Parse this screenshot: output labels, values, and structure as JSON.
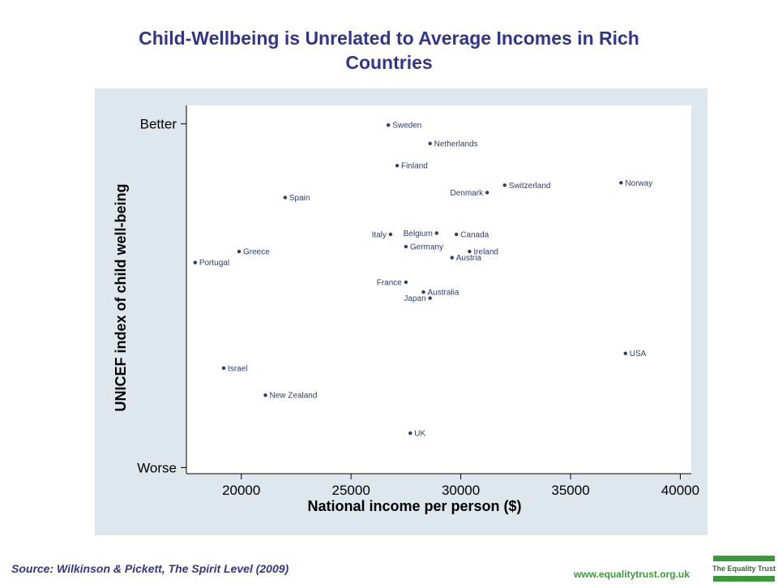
{
  "page": {
    "title": "Child-Wellbeing is Unrelated to Average Incomes in Rich Countries",
    "source": "Source: Wilkinson & Pickett, The Spirit Level (2009)",
    "website": "www.equalitytrust.org.uk",
    "logo_text": "The Equality Trust"
  },
  "colors": {
    "title": "#33358a",
    "panel_bg": "#dfe7ee",
    "plot_bg": "#ffffff",
    "point": "#2c3d6e",
    "website": "#3a9a3a"
  },
  "chart_data": {
    "type": "scatter",
    "title": "Child-Wellbeing is Unrelated to Average Incomes in Rich Countries",
    "xlabel": "National income per person ($)",
    "ylabel": "UNICEF index of child well-being",
    "xlim": [
      17500,
      40500
    ],
    "ylim": [
      -1.45,
      1.55
    ],
    "x_ticks": [
      20000,
      25000,
      30000,
      35000,
      40000
    ],
    "x_tick_labels": [
      "20000",
      "25000",
      "30000",
      "35000",
      "40000"
    ],
    "y_ticks": [
      -1.4,
      1.4
    ],
    "y_tick_labels": [
      "Worse",
      "Better"
    ],
    "grid": false,
    "points": [
      {
        "label": "Sweden",
        "x": 26700,
        "y": 1.39,
        "label_side": "right"
      },
      {
        "label": "Netherlands",
        "x": 28600,
        "y": 1.24,
        "label_side": "right"
      },
      {
        "label": "Finland",
        "x": 27100,
        "y": 1.06,
        "label_side": "right"
      },
      {
        "label": "Switzerland",
        "x": 32000,
        "y": 0.9,
        "label_side": "right"
      },
      {
        "label": "Norway",
        "x": 37300,
        "y": 0.92,
        "label_side": "right"
      },
      {
        "label": "Denmark",
        "x": 31200,
        "y": 0.84,
        "label_side": "left"
      },
      {
        "label": "Spain",
        "x": 22000,
        "y": 0.8,
        "label_side": "right"
      },
      {
        "label": "Italy",
        "x": 26800,
        "y": 0.5,
        "label_side": "left"
      },
      {
        "label": "Belgium",
        "x": 28900,
        "y": 0.51,
        "label_side": "left"
      },
      {
        "label": "Canada",
        "x": 29800,
        "y": 0.5,
        "label_side": "right"
      },
      {
        "label": "Germany",
        "x": 27500,
        "y": 0.4,
        "label_side": "right"
      },
      {
        "label": "Greece",
        "x": 19900,
        "y": 0.36,
        "label_side": "right"
      },
      {
        "label": "Ireland",
        "x": 30400,
        "y": 0.36,
        "label_side": "right"
      },
      {
        "label": "Austria",
        "x": 29600,
        "y": 0.31,
        "label_side": "right"
      },
      {
        "label": "Portugal",
        "x": 17900,
        "y": 0.27,
        "label_side": "right"
      },
      {
        "label": "France",
        "x": 27500,
        "y": 0.11,
        "label_side": "left"
      },
      {
        "label": "Australia",
        "x": 28300,
        "y": 0.03,
        "label_side": "right"
      },
      {
        "label": "Japan",
        "x": 28600,
        "y": -0.02,
        "label_side": "left"
      },
      {
        "label": "USA",
        "x": 37500,
        "y": -0.47,
        "label_side": "right"
      },
      {
        "label": "Israel",
        "x": 19200,
        "y": -0.59,
        "label_side": "right"
      },
      {
        "label": "New Zealand",
        "x": 21100,
        "y": -0.81,
        "label_side": "right"
      },
      {
        "label": "UK",
        "x": 27700,
        "y": -1.12,
        "label_side": "right"
      }
    ]
  }
}
